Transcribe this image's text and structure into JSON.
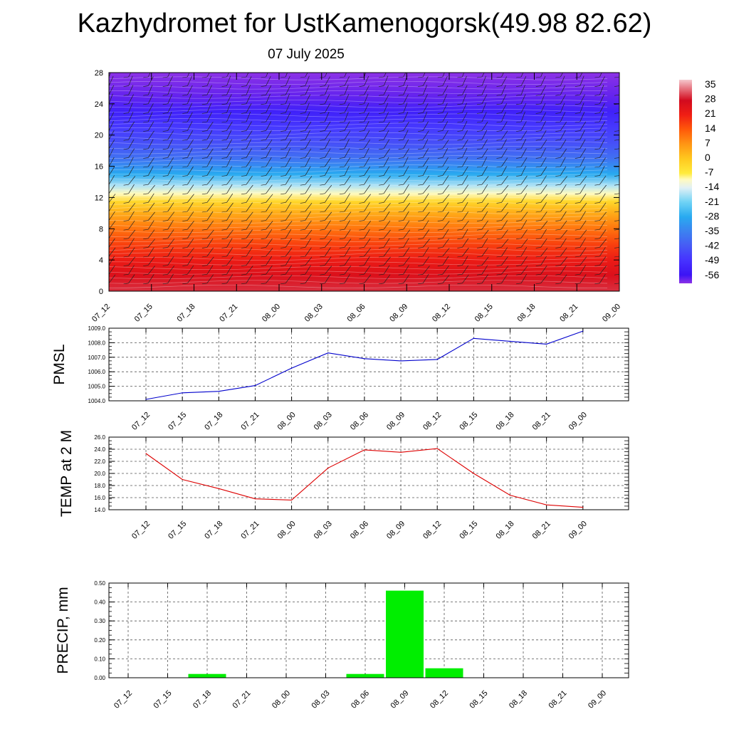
{
  "title": "Kazhydromet for UstKamenogorsk(49.98 82.62)",
  "subtitle": "07 July 2025",
  "colors": {
    "pmsl_line": "#0000cc",
    "temp_line": "#dd0000",
    "precip_bar": "#00ee00",
    "grid": "#555555"
  },
  "chart_data": [
    {
      "type": "heatmap",
      "title": "",
      "xlabel": "",
      "ylabel": "",
      "x_ticks": [
        "07_12",
        "07_15",
        "07_18",
        "07_21",
        "08_00",
        "08_03",
        "08_06",
        "08_09",
        "08_12",
        "08_15",
        "08_18",
        "08_21",
        "09_00"
      ],
      "y_ticks": [
        "0",
        "4",
        "8",
        "12",
        "16",
        "20",
        "24",
        "28"
      ],
      "ylim": [
        0,
        28
      ],
      "colorbar_labels": [
        "35",
        "28",
        "21",
        "14",
        "7",
        "0",
        "-7",
        "-14",
        "-21",
        "-28",
        "-35",
        "-42",
        "-49",
        "-56"
      ],
      "colorbar_range": [
        -60,
        38
      ],
      "temperature_profile": [
        {
          "level": 0,
          "value": 30
        },
        {
          "level": 2,
          "value": 26
        },
        {
          "level": 4,
          "value": 22
        },
        {
          "level": 6,
          "value": 17
        },
        {
          "level": 8,
          "value": 11
        },
        {
          "level": 10,
          "value": 4
        },
        {
          "level": 11.5,
          "value": -3
        },
        {
          "level": 12.5,
          "value": -10
        },
        {
          "level": 13.5,
          "value": -17
        },
        {
          "level": 15,
          "value": -28
        },
        {
          "level": 17,
          "value": -38
        },
        {
          "level": 19,
          "value": -44
        },
        {
          "level": 21,
          "value": -48
        },
        {
          "level": 23,
          "value": -53
        },
        {
          "level": 25,
          "value": -58
        },
        {
          "level": 28,
          "value": -60
        }
      ],
      "overlay": "wind barbs"
    },
    {
      "type": "line",
      "ylabel": "PMSL",
      "xlabel": "",
      "categories": [
        "07_12",
        "07_15",
        "07_18",
        "07_21",
        "08_00",
        "08_03",
        "08_06",
        "08_09",
        "08_12",
        "08_15",
        "08_18",
        "08_21",
        "09_00"
      ],
      "values": [
        1004.1,
        1004.55,
        1004.65,
        1005.05,
        1006.25,
        1007.3,
        1006.9,
        1006.75,
        1006.85,
        1008.3,
        1008.1,
        1007.9,
        1008.8
      ],
      "ylim": [
        1004.0,
        1009.0
      ],
      "y_ticks": [
        "1004.0",
        "1005.0",
        "1006.0",
        "1007.0",
        "1008.0",
        "1009.0"
      ],
      "grid": true
    },
    {
      "type": "line",
      "ylabel": "TEMP at 2 M",
      "xlabel": "",
      "categories": [
        "07_12",
        "07_15",
        "07_18",
        "07_21",
        "08_00",
        "08_03",
        "08_06",
        "08_09",
        "08_12",
        "08_15",
        "08_18",
        "08_21",
        "09_00"
      ],
      "values": [
        23.3,
        19.0,
        17.5,
        15.8,
        15.6,
        20.9,
        23.9,
        23.5,
        24.1,
        20.0,
        16.4,
        14.8,
        14.4
      ],
      "ylim": [
        14.0,
        26.0
      ],
      "y_ticks": [
        "14.0",
        "16.0",
        "18.0",
        "20.0",
        "22.0",
        "24.0",
        "26.0"
      ],
      "grid": true
    },
    {
      "type": "bar",
      "ylabel": "PRECIP, mm",
      "xlabel": "",
      "categories": [
        "07_12",
        "07_15",
        "07_18",
        "07_21",
        "08_00",
        "08_03",
        "08_06",
        "08_09",
        "08_12",
        "08_15",
        "08_18",
        "08_21",
        "09_00"
      ],
      "values": [
        0,
        0,
        0.02,
        0,
        0,
        0,
        0.02,
        0.46,
        0.05,
        0,
        0,
        0,
        0
      ],
      "ylim": [
        0,
        0.5
      ],
      "y_ticks": [
        "0.00",
        "0.10",
        "0.20",
        "0.30",
        "0.40",
        "0.50"
      ],
      "grid": true
    }
  ]
}
